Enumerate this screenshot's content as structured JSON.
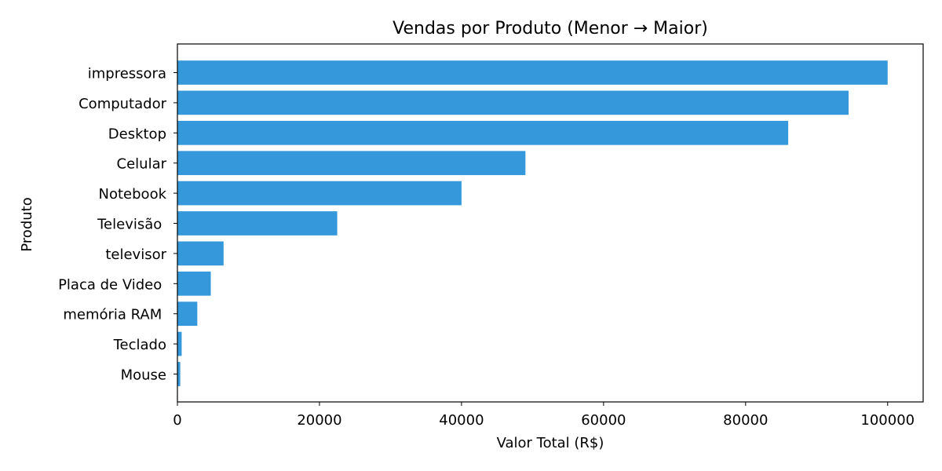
{
  "chart_data": {
    "type": "bar",
    "orientation": "horizontal",
    "title": "Vendas por Produto (Menor → Maior)",
    "xlabel": "Valor Total (R$)",
    "ylabel": "Produto",
    "categories": [
      "Mouse",
      "Teclado",
      "memória RAM ",
      "Placa de Video ",
      "televisor",
      "Televisão ",
      "Notebook",
      "Celular",
      "Desktop",
      "Computador",
      "impressora"
    ],
    "values": [
      400,
      600,
      2800,
      4700,
      6500,
      22500,
      40000,
      49000,
      86000,
      94500,
      100000
    ],
    "xlim": [
      0,
      105000
    ],
    "xticks": [
      0,
      20000,
      40000,
      60000,
      80000,
      100000
    ],
    "grid": false,
    "bar_color": "#3498db"
  }
}
